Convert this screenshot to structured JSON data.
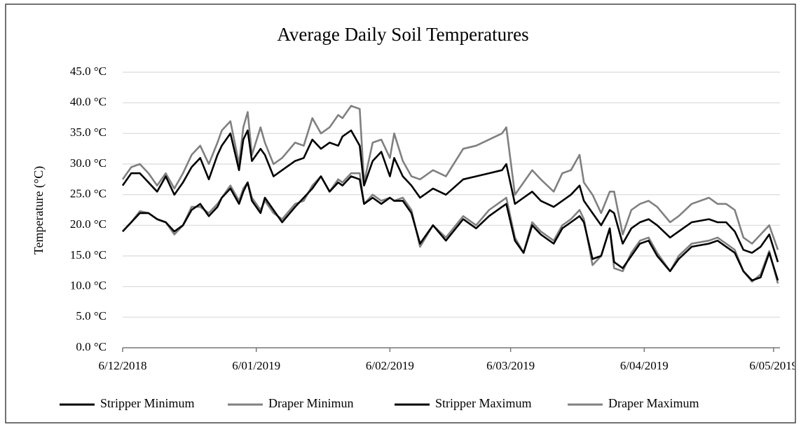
{
  "chart_data": {
    "type": "line",
    "title": "Average Daily Soil Temperatures",
    "y_label": "Temperature (°C)",
    "x": [
      0,
      2,
      4,
      6,
      8,
      10,
      12,
      14,
      16,
      18,
      20,
      22,
      23,
      25,
      27,
      28,
      29,
      30,
      32,
      33,
      35,
      37,
      40,
      42,
      44,
      46,
      48,
      50,
      51,
      53,
      55,
      56,
      58,
      60,
      62,
      63,
      65,
      67,
      69,
      72,
      75,
      79,
      82,
      85,
      88,
      89,
      91,
      93,
      95,
      97,
      100,
      102,
      104,
      106,
      107,
      109,
      111,
      113,
      114,
      116,
      118,
      120,
      122,
      124,
      127,
      129,
      132,
      136,
      138,
      140,
      142,
      144,
      146,
      148,
      150,
      152
    ],
    "xlim": [
      0,
      152
    ],
    "xticks": [
      {
        "value": 0,
        "label": "6/12/2018"
      },
      {
        "value": 31,
        "label": "6/01/2019"
      },
      {
        "value": 62,
        "label": "6/02/2019"
      },
      {
        "value": 90,
        "label": "6/03/2019"
      },
      {
        "value": 121,
        "label": "6/04/2019"
      },
      {
        "value": 151,
        "label": "6/05/2019"
      }
    ],
    "ylim": [
      0,
      45
    ],
    "yticks": [
      {
        "value": 0,
        "label": "0.0 °C"
      },
      {
        "value": 5,
        "label": "5.0 °C"
      },
      {
        "value": 10,
        "label": "10.0 °C"
      },
      {
        "value": 15,
        "label": "15.0 °C"
      },
      {
        "value": 20,
        "label": "20.0 °C"
      },
      {
        "value": 25,
        "label": "25.0 °C"
      },
      {
        "value": 30,
        "label": "30.0 °C"
      },
      {
        "value": 35,
        "label": "35.0 °C"
      },
      {
        "value": 40,
        "label": "40.0 °C"
      },
      {
        "value": 45,
        "label": "45.0 °C"
      }
    ],
    "grid": true,
    "legend": "bottom",
    "series": [
      {
        "name": "Stripper Minimum",
        "color": "#000000",
        "values": [
          19,
          20.5,
          22,
          22,
          21,
          20.5,
          19,
          20,
          22.5,
          23.5,
          21.5,
          23,
          24.5,
          26,
          23.5,
          25.5,
          27,
          24,
          22,
          24.5,
          22.5,
          20.5,
          23,
          24.5,
          26,
          28,
          25.5,
          27,
          26.5,
          28,
          27.5,
          23.5,
          24.5,
          23.5,
          24.5,
          24,
          24,
          22,
          17,
          20,
          17.5,
          21,
          19.5,
          21.5,
          23,
          23.5,
          17.5,
          15.5,
          20,
          18.5,
          17,
          19.5,
          20.5,
          21.5,
          20.5,
          14.5,
          15,
          19.5,
          14,
          13,
          15,
          17,
          17.5,
          15,
          12.5,
          14.5,
          16.5,
          17,
          17.5,
          16.5,
          15.5,
          12.5,
          11,
          11.5,
          15.5,
          11
        ]
      },
      {
        "name": "Draper Minimun",
        "color": "#808080",
        "values": [
          19,
          20.5,
          22.3,
          22,
          21,
          20.5,
          18.5,
          20,
          23,
          23,
          22,
          23.5,
          24.5,
          26.5,
          24,
          26,
          27,
          24.5,
          22.5,
          24,
          22,
          21,
          23.5,
          24,
          26.5,
          28,
          25.5,
          27.5,
          27,
          28.5,
          28.5,
          23.5,
          25,
          24,
          24.5,
          24,
          24.5,
          22.5,
          16.5,
          20,
          18,
          21.5,
          20,
          22.5,
          24,
          24.5,
          18,
          15.5,
          20.5,
          19,
          17.5,
          20,
          21,
          22.5,
          21,
          13.5,
          15,
          19.5,
          13,
          12.5,
          15.5,
          17.5,
          18,
          15.5,
          12.5,
          15,
          17,
          17.5,
          18,
          17,
          16,
          12.5,
          10.8,
          12,
          15.8,
          10.5
        ]
      },
      {
        "name": "Stripper Maximum",
        "color": "#000000",
        "values": [
          26.5,
          28.5,
          28.5,
          27,
          25.5,
          28,
          25,
          27,
          29.5,
          31,
          27.5,
          31.5,
          33,
          35,
          29,
          34,
          35.5,
          30.5,
          32.5,
          31.5,
          28,
          29,
          30.5,
          31,
          34,
          32.5,
          33.5,
          33,
          34.5,
          35.5,
          33,
          26.5,
          30.5,
          32,
          28,
          31,
          28,
          26.5,
          24.5,
          26,
          25,
          27.5,
          28,
          28.5,
          29,
          30,
          23.5,
          24.5,
          25.5,
          24,
          23,
          24,
          25,
          26.5,
          24,
          22,
          20,
          22.5,
          22,
          17,
          19.5,
          20.5,
          21,
          20,
          18,
          19,
          20.5,
          21,
          20.5,
          20.5,
          19,
          16,
          15.5,
          16.5,
          18.5,
          14
        ]
      },
      {
        "name": "Draper Maximum",
        "color": "#808080",
        "values": [
          27.5,
          29.5,
          30,
          28.5,
          26.5,
          28.5,
          26,
          28.5,
          31.5,
          33,
          30,
          33.5,
          35.5,
          37,
          30,
          36,
          38.5,
          31.5,
          36,
          33.5,
          30,
          31,
          33.5,
          33,
          37.5,
          35,
          36,
          38,
          37.5,
          39.5,
          39,
          27,
          33.5,
          34,
          31,
          35,
          30.5,
          28,
          27.5,
          29,
          28,
          32.5,
          33,
          34,
          35,
          36,
          25,
          27,
          29,
          27.5,
          25.5,
          28.5,
          29,
          31.5,
          27,
          25,
          22,
          25.5,
          25.5,
          18.5,
          22.5,
          23.5,
          24,
          23,
          20.5,
          21.5,
          23.5,
          24.5,
          23.5,
          23.5,
          22.5,
          18,
          17,
          18.5,
          20,
          16
        ]
      }
    ]
  }
}
